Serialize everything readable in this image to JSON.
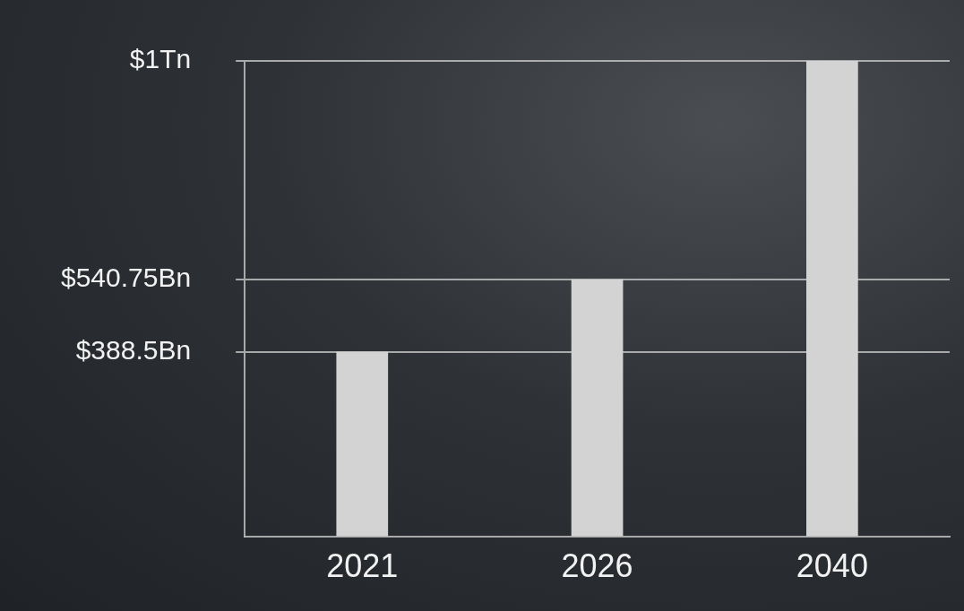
{
  "chart_data": {
    "type": "bar",
    "categories": [
      "2021",
      "2026",
      "2040"
    ],
    "values": [
      388.5,
      540.75,
      1000
    ],
    "color": "#d3d3d3",
    "ylim": [
      0,
      1000
    ],
    "yticks": [
      {
        "value": 388.5,
        "label": "$388.5Bn"
      },
      {
        "value": 540.75,
        "label": "$540.75Bn"
      },
      {
        "value": 1000,
        "label": "$1Tn"
      }
    ],
    "grid": true
  }
}
